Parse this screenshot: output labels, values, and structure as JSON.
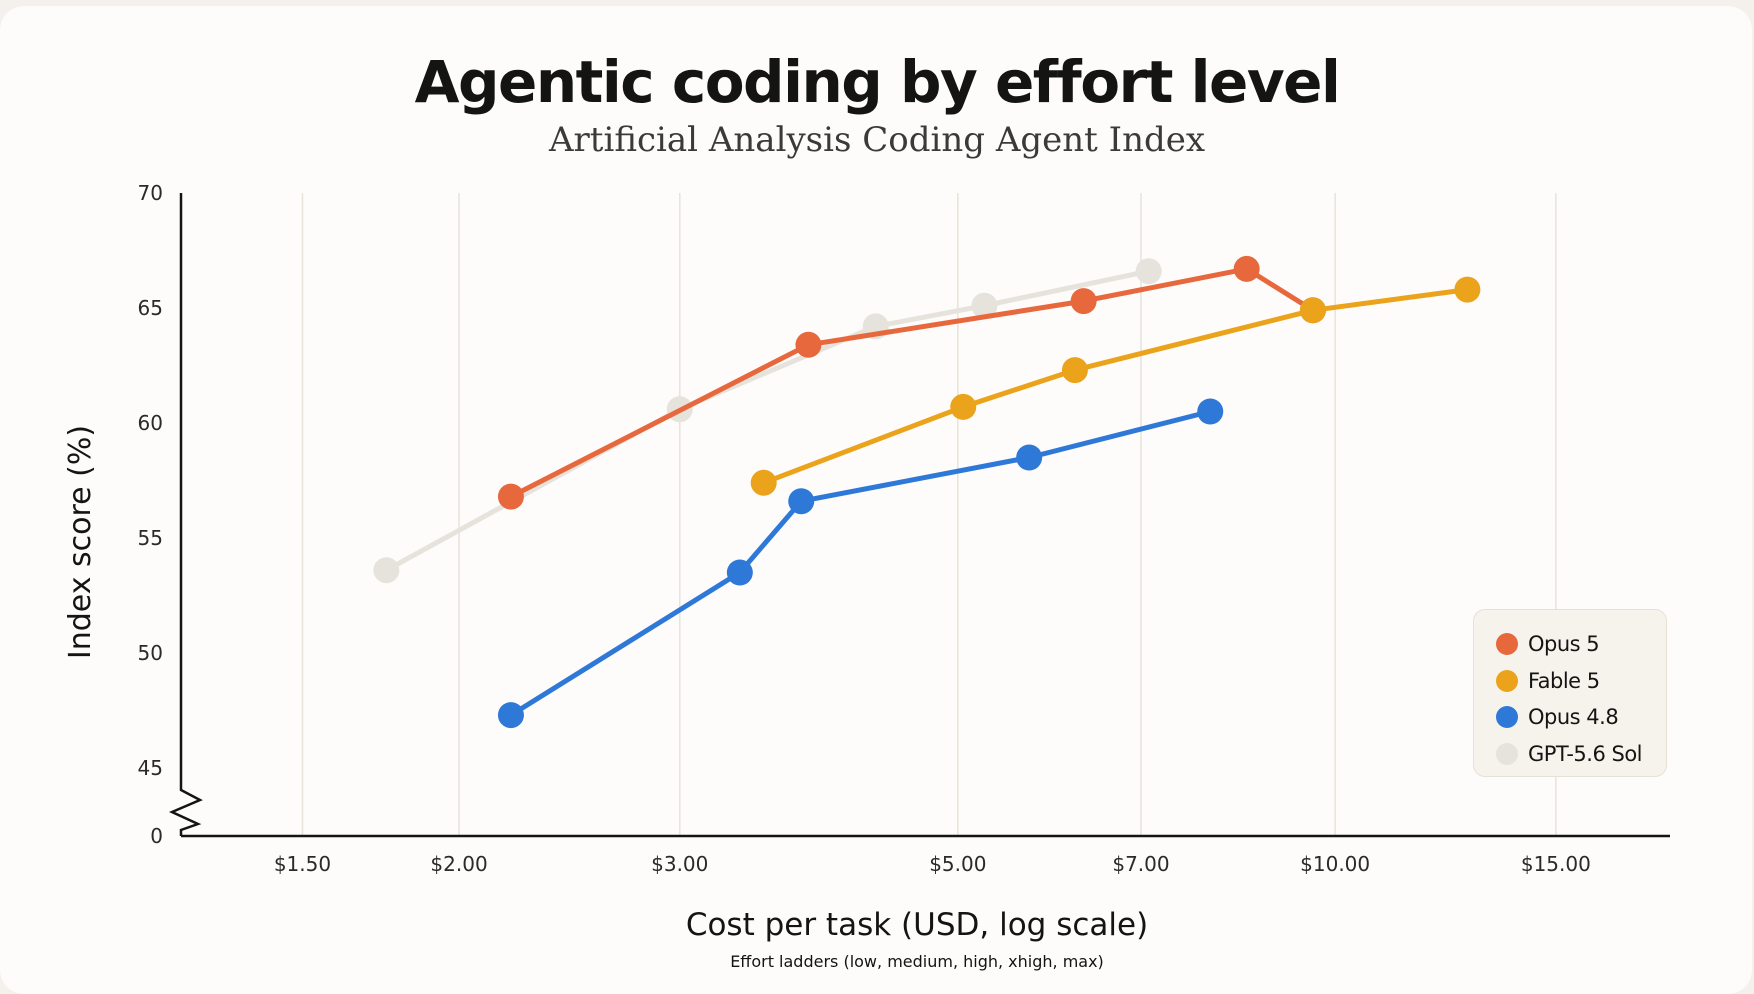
{
  "chart_data": {
    "type": "line",
    "title": "Agentic coding by effort level",
    "subtitle": "Artificial Analysis Coding Agent Index",
    "xlabel": "Cost per task (USD, log scale)",
    "xlabel_note": "Effort ladders (low, medium, high, xhigh, max)",
    "ylabel": "Index score (%)",
    "x_scale": "log",
    "xlim": [
      1.2,
      18.5
    ],
    "ylim": [
      45,
      70
    ],
    "y_axis_break": true,
    "y_break_zero_label": "0",
    "x_ticks": [
      {
        "value": 1.5,
        "label": "$1.50"
      },
      {
        "value": 2.0,
        "label": "$2.00"
      },
      {
        "value": 3.0,
        "label": "$3.00"
      },
      {
        "value": 5.0,
        "label": "$5.00"
      },
      {
        "value": 7.0,
        "label": "$7.00"
      },
      {
        "value": 10.0,
        "label": "$10.00"
      },
      {
        "value": 15.0,
        "label": "$15.00"
      }
    ],
    "y_ticks": [
      {
        "value": 70,
        "label": "70"
      },
      {
        "value": 65,
        "label": "65"
      },
      {
        "value": 60,
        "label": "60"
      },
      {
        "value": 55,
        "label": "55"
      },
      {
        "value": 50,
        "label": "50"
      },
      {
        "value": 45,
        "label": "45"
      }
    ],
    "grid": "vertical lines at x ticks",
    "legend_position": "bottom-right",
    "series": [
      {
        "name": "GPT-5.6 Sol",
        "color": "#e5e3dc",
        "points": [
          {
            "x": 1.75,
            "y": 53.6
          },
          {
            "x": 3.0,
            "y": 60.6
          },
          {
            "x": 4.3,
            "y": 64.2
          },
          {
            "x": 5.25,
            "y": 65.1
          },
          {
            "x": 7.1,
            "y": 66.6
          }
        ]
      },
      {
        "name": "Opus 5",
        "color": "#e8683d",
        "points": [
          {
            "x": 2.2,
            "y": 56.8
          },
          {
            "x": 3.8,
            "y": 63.4
          },
          {
            "x": 6.3,
            "y": 65.3
          },
          {
            "x": 8.5,
            "y": 66.7
          },
          {
            "x": 9.6,
            "y": 64.9
          }
        ]
      },
      {
        "name": "Fable 5",
        "color": "#eaa31b",
        "points": [
          {
            "x": 3.5,
            "y": 57.4
          },
          {
            "x": 5.05,
            "y": 60.7
          },
          {
            "x": 6.2,
            "y": 62.3
          },
          {
            "x": 9.6,
            "y": 64.9
          },
          {
            "x": 12.75,
            "y": 65.8
          }
        ]
      },
      {
        "name": "Opus 4.8",
        "color": "#2e78d8",
        "points": [
          {
            "x": 2.2,
            "y": 47.3
          },
          {
            "x": 3.35,
            "y": 53.5
          },
          {
            "x": 3.75,
            "y": 56.6
          },
          {
            "x": 5.7,
            "y": 58.5
          },
          {
            "x": 7.95,
            "y": 60.5
          }
        ]
      }
    ]
  },
  "legend": {
    "items": [
      {
        "label": "Opus 5",
        "color": "#e8683d"
      },
      {
        "label": "Fable 5",
        "color": "#eaa31b"
      },
      {
        "label": "Opus 4.8",
        "color": "#2e78d8"
      },
      {
        "label": "GPT-5.6 Sol",
        "color": "#e5e3dc"
      }
    ]
  }
}
